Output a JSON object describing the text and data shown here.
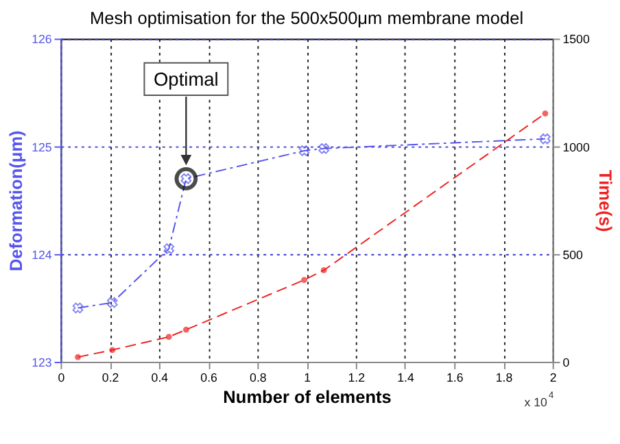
{
  "chart_data": {
    "type": "line",
    "title": "Mesh optimisation for the 500x500μm membrane model",
    "xlabel": "Number of elements",
    "ylabel": "Deformation(μm)",
    "y2label": "Time(s)",
    "x": [
      0.07,
      0.21,
      0.44,
      0.51,
      0.99,
      1.07,
      1.97
    ],
    "series": [
      {
        "color": "#5555ee",
        "values": [
          123.5,
          123.55,
          124.05,
          124.7,
          124.96,
          124.98,
          125.07
        ],
        "marker": "cross",
        "line_style": "dashdot"
      },
      {
        "color": "#ee2222",
        "axis": "y2",
        "values": [
          22,
          55,
          116,
          149,
          380,
          425,
          1153
        ],
        "marker": "circle",
        "line_style": "dashed"
      }
    ],
    "xlim": [
      0,
      2
    ],
    "xticks": [
      0,
      0.2,
      0.4,
      0.6,
      0.8,
      1,
      1.2,
      1.4,
      1.6,
      1.8,
      2
    ],
    "ylim": [
      123,
      126
    ],
    "yticks": [
      123,
      124,
      125,
      126
    ],
    "y2lim": [
      0,
      1500
    ],
    "y2ticks": [
      0,
      500,
      1000,
      1500
    ],
    "grid": true,
    "annotations": [
      "Optimal",
      "x 10$^{4}$"
    ]
  }
}
